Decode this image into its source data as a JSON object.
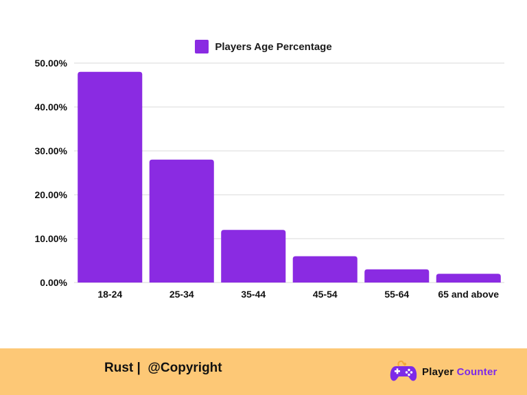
{
  "colors": {
    "bar": "#8a2be2",
    "footer_bg": "#fdc876",
    "grid": "#d9d9d9",
    "brand_accent": "#7d2ae8"
  },
  "chart_data": {
    "type": "bar",
    "title": "",
    "xlabel": "",
    "ylabel": "",
    "categories": [
      "18-24",
      "25-34",
      "35-44",
      "45-54",
      "55-64",
      "65 and above"
    ],
    "series": [
      {
        "name": "Players Age Percentage",
        "values": [
          48,
          28,
          12,
          6,
          3,
          2
        ]
      }
    ],
    "ylim": [
      0,
      50
    ],
    "yticks": [
      0,
      10,
      20,
      30,
      40,
      50
    ],
    "ytick_labels": [
      "0.00%",
      "10.00%",
      "20.00%",
      "30.00%",
      "40.00%",
      "50.00%"
    ],
    "grid": true,
    "legend_position": "top-center"
  },
  "footer": {
    "text": "Rust |  @Copyright",
    "logo_word1": "Player",
    "logo_word2": "Counter",
    "logo_icon": "gamepad-icon"
  }
}
